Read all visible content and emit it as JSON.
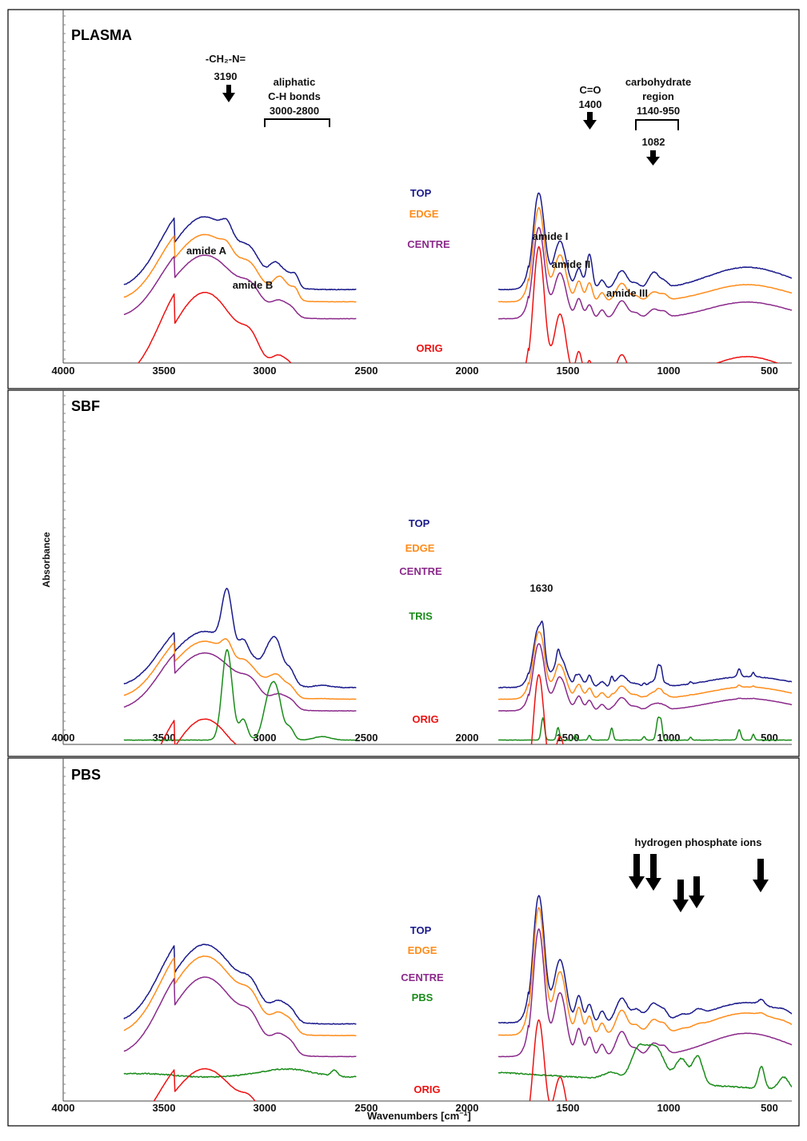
{
  "chart_data": {
    "type": "line",
    "ylabel": "Absorbance",
    "xlabel_text": "Wavenumbers [cm",
    "xlabel_sup": "−1",
    "xlabel_close": "]",
    "xlim": [
      4000,
      400
    ],
    "gap_range": [
      2550,
      1850
    ],
    "xticks": [
      4000,
      3500,
      3000,
      2500,
      2000,
      1500,
      1000,
      500
    ],
    "colors": {
      "TOP": "#1a1a8c",
      "EDGE": "#ff8c1a",
      "CENTRE": "#8b2a8b",
      "ORIG": "#ee1111",
      "TRIS": "#1a8c1a",
      "PBS": "#1a8c1a"
    },
    "panels": [
      {
        "title": "PLASMA",
        "series": [
          {
            "name": "TOP",
            "label": "TOP",
            "baseline": 0.93
          },
          {
            "name": "EDGE",
            "label": "EDGE",
            "baseline": 0.72
          },
          {
            "name": "CENTRE",
            "label": "CENTRE",
            "baseline": 0.43
          },
          {
            "name": "ORIG",
            "label": "ORIG",
            "baseline": -0.64
          }
        ],
        "annotations": {
          "ch2n_name": "-CH₂-N=",
          "ch2n_value": "3190",
          "aliphatic_1": "aliphatic",
          "aliphatic_2": "C-H bonds",
          "aliphatic_3": "3000-2800",
          "co_name": "C=O",
          "co_value": "1400",
          "carb_1": "carbohydrate",
          "carb_2": "region",
          "carb_3": "1140-950",
          "carb_peak": "1082",
          "amide_a": "amide A",
          "amide_b": "amide B",
          "amide_1": "amide I",
          "amide_2": "amide II",
          "amide_3": "amide III"
        }
      },
      {
        "title": "SBF",
        "series": [
          {
            "name": "TOP",
            "label": "TOP",
            "baseline": 0.55
          },
          {
            "name": "EDGE",
            "label": "EDGE",
            "baseline": 0.35
          },
          {
            "name": "CENTRE",
            "label": "CENTRE",
            "baseline": 0.15
          },
          {
            "name": "TRIS",
            "label": "TRIS",
            "baseline": -0.35
          },
          {
            "name": "ORIG",
            "label": "ORIG",
            "baseline": -1.35
          }
        ],
        "annotations": {
          "tris_peak": "1630"
        }
      },
      {
        "title": "PBS",
        "series": [
          {
            "name": "TOP",
            "label": "TOP",
            "baseline": 1.13
          },
          {
            "name": "EDGE",
            "label": "EDGE",
            "baseline": 0.93
          },
          {
            "name": "CENTRE",
            "label": "CENTRE",
            "baseline": 0.57
          },
          {
            "name": "PBS",
            "label": "PBS",
            "baseline": 0.2
          },
          {
            "name": "ORIG",
            "label": "ORIG",
            "baseline": -0.76
          }
        ],
        "annotations": {
          "hpo4": "hydrogen phosphate ions"
        }
      }
    ]
  }
}
